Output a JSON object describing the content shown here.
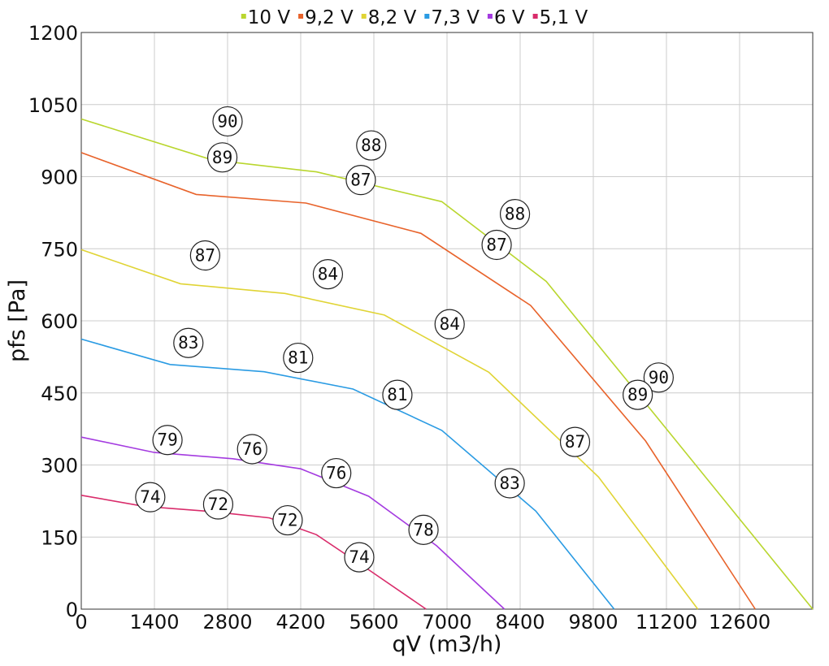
{
  "chart_data": {
    "type": "line",
    "xlabel": "qV (m3/h)",
    "ylabel": "pfs [Pa]",
    "xlim": [
      0,
      14000
    ],
    "ylim": [
      0,
      1200
    ],
    "x_ticks": [
      0,
      1400,
      2800,
      4200,
      5600,
      7000,
      8400,
      9800,
      11200,
      12600
    ],
    "y_ticks": [
      0,
      150,
      300,
      450,
      600,
      750,
      900,
      1050,
      1200
    ],
    "grid": true,
    "legend_position": "top",
    "series": [
      {
        "name": "10 V",
        "color": "#b9d62e",
        "points": [
          [
            0,
            1020
          ],
          [
            2500,
            935
          ],
          [
            4500,
            910
          ],
          [
            6900,
            848
          ],
          [
            8900,
            682
          ],
          [
            11200,
            375
          ],
          [
            14000,
            0
          ]
        ]
      },
      {
        "name": "9,2 V",
        "color": "#e8632b",
        "points": [
          [
            0,
            950
          ],
          [
            2200,
            863
          ],
          [
            4300,
            845
          ],
          [
            6500,
            782
          ],
          [
            8600,
            632
          ],
          [
            10800,
            350
          ],
          [
            12900,
            0
          ]
        ]
      },
      {
        "name": "8,2 V",
        "color": "#e0d435",
        "points": [
          [
            0,
            748
          ],
          [
            1900,
            677
          ],
          [
            3900,
            657
          ],
          [
            5800,
            612
          ],
          [
            7800,
            493
          ],
          [
            9900,
            275
          ],
          [
            11800,
            0
          ]
        ]
      },
      {
        "name": "7,3 V",
        "color": "#2a9be3",
        "points": [
          [
            0,
            562
          ],
          [
            1700,
            509
          ],
          [
            3500,
            494
          ],
          [
            5200,
            458
          ],
          [
            6900,
            372
          ],
          [
            8700,
            204
          ],
          [
            10200,
            0
          ]
        ]
      },
      {
        "name": "6 V",
        "color": "#a43be0",
        "points": [
          [
            0,
            358
          ],
          [
            1400,
            326
          ],
          [
            2900,
            313
          ],
          [
            4200,
            292
          ],
          [
            5500,
            235
          ],
          [
            6800,
            132
          ],
          [
            8100,
            0
          ]
        ]
      },
      {
        "name": "5,1 V",
        "color": "#d92c6b",
        "points": [
          [
            0,
            237
          ],
          [
            1200,
            214
          ],
          [
            2500,
            203
          ],
          [
            3600,
            190
          ],
          [
            4500,
            155
          ],
          [
            5500,
            82
          ],
          [
            6600,
            0
          ]
        ]
      }
    ],
    "annotations": [
      {
        "text": "90",
        "x": 2800,
        "y": 1015
      },
      {
        "text": "89",
        "x": 2700,
        "y": 940
      },
      {
        "text": "88",
        "x": 5550,
        "y": 965
      },
      {
        "text": "87",
        "x": 5350,
        "y": 893
      },
      {
        "text": "88",
        "x": 8300,
        "y": 822
      },
      {
        "text": "87",
        "x": 7950,
        "y": 758
      },
      {
        "text": "87",
        "x": 2370,
        "y": 736
      },
      {
        "text": "84",
        "x": 4720,
        "y": 697
      },
      {
        "text": "84",
        "x": 7050,
        "y": 593
      },
      {
        "text": "83",
        "x": 2050,
        "y": 554
      },
      {
        "text": "81",
        "x": 4150,
        "y": 523
      },
      {
        "text": "81",
        "x": 6050,
        "y": 446
      },
      {
        "text": "90",
        "x": 11050,
        "y": 482
      },
      {
        "text": "89",
        "x": 10650,
        "y": 446
      },
      {
        "text": "87",
        "x": 9450,
        "y": 348
      },
      {
        "text": "83",
        "x": 8200,
        "y": 262
      },
      {
        "text": "79",
        "x": 1650,
        "y": 352
      },
      {
        "text": "76",
        "x": 3270,
        "y": 333
      },
      {
        "text": "76",
        "x": 4880,
        "y": 283
      },
      {
        "text": "78",
        "x": 6550,
        "y": 165
      },
      {
        "text": "74",
        "x": 1320,
        "y": 233
      },
      {
        "text": "72",
        "x": 2620,
        "y": 218
      },
      {
        "text": "72",
        "x": 3950,
        "y": 185
      },
      {
        "text": "74",
        "x": 5320,
        "y": 108
      }
    ]
  }
}
